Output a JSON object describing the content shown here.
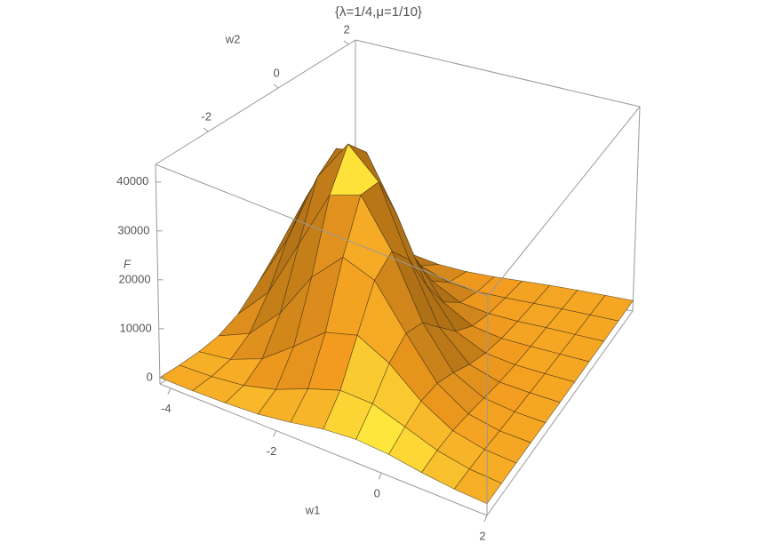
{
  "chart_data": {
    "type": "surface3d",
    "title": "{λ=1/4,μ=1/10}",
    "xlabel": "w1",
    "ylabel": "w2",
    "zlabel": "F",
    "x": [
      -4.2,
      -3.58,
      -2.96,
      -2.34,
      -1.72,
      -1.1,
      -0.48,
      0.14,
      0.76,
      1.38,
      2.0
    ],
    "y": [
      -3.5,
      -2.93,
      -2.36,
      -1.79,
      -1.22,
      -0.65,
      -0.08,
      0.49,
      1.06,
      1.63,
      2.2
    ],
    "z": [
      [
        0,
        0,
        200,
        900,
        2800,
        6400,
        10700,
        12900,
        11200,
        7100,
        3300
      ],
      [
        0,
        200,
        1000,
        3600,
        9300,
        17400,
        23500,
        23000,
        16300,
        8400,
        3100
      ],
      [
        200,
        900,
        3500,
        10100,
        21300,
        32300,
        35300,
        27900,
        15900,
        6600,
        2000
      ],
      [
        600,
        2600,
        8400,
        19600,
        33500,
        41100,
        36400,
        23300,
        10800,
        3700,
        900
      ],
      [
        1600,
        5300,
        13700,
        26000,
        35700,
        35300,
        25500,
        13300,
        5100,
        1500,
        500
      ],
      [
        2900,
        7500,
        15500,
        23500,
        26200,
        21100,
        12500,
        5500,
        2000,
        800,
        500
      ],
      [
        3500,
        7300,
        12100,
        14800,
        13500,
        9000,
        4600,
        2100,
        1100,
        800,
        700
      ],
      [
        3100,
        5100,
        6700,
        6700,
        5200,
        3200,
        1800,
        1100,
        900,
        900,
        900
      ],
      [
        2100,
        2800,
        3000,
        2600,
        2000,
        1400,
        1100,
        1000,
        1000,
        1000,
        1000
      ],
      [
        1400,
        1500,
        1500,
        1300,
        1200,
        1100,
        1000,
        1000,
        1000,
        1000,
        1000
      ],
      [
        1100,
        1100,
        1100,
        1100,
        1000,
        1000,
        1000,
        1000,
        1000,
        1000,
        1000
      ]
    ],
    "xlim": [
      -4.2,
      2
    ],
    "ylim": [
      -3.5,
      2.2
    ],
    "zlim": [
      -1300,
      43600
    ],
    "xticks": [
      -4,
      -2,
      0,
      2
    ],
    "yticks": [
      -2,
      0,
      2
    ],
    "zticks": [
      0,
      10000,
      20000,
      30000,
      40000
    ],
    "color": "#f39c1f"
  }
}
